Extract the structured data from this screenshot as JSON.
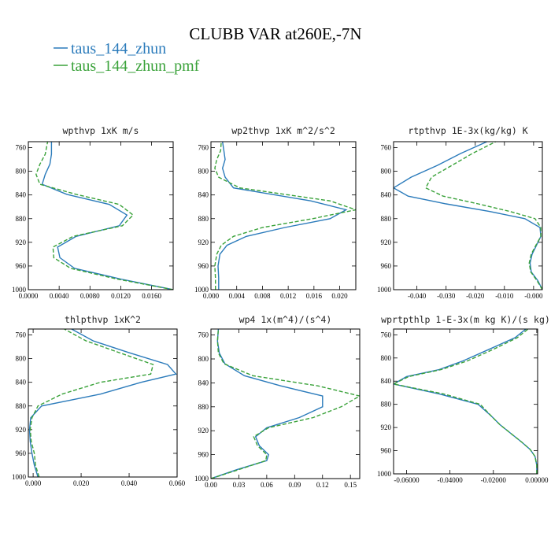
{
  "figure": {
    "title": "CLUBB VAR at260E,-7N",
    "legend": [
      {
        "label": "taus_144_zhun",
        "color": "#2b7bbb",
        "dash": "solid"
      },
      {
        "label": "taus_144_zhun_pmf",
        "color": "#3aa23a",
        "dash": "dashed"
      }
    ]
  },
  "chart_data": [
    {
      "type": "line",
      "title": "wpthvp  1xK m/s",
      "xlim": [
        0,
        0.0188
      ],
      "ylim": [
        1000,
        750
      ],
      "xticks": [
        0,
        0.004,
        0.008,
        0.012,
        0.016
      ],
      "xticklabels": [
        "0.0000",
        "0.0040",
        "0.0080",
        "0.0120",
        "0.0160"
      ],
      "yticks": [
        760,
        800,
        840,
        880,
        920,
        960,
        1000
      ],
      "y": [
        1000,
        982,
        964,
        946,
        928,
        910,
        892,
        874,
        856,
        839,
        822,
        805,
        788,
        771,
        750
      ],
      "series": [
        {
          "name": "taus_144_zhun",
          "x": [
            0.0188,
            0.012,
            0.006,
            0.0041,
            0.0038,
            0.0062,
            0.0118,
            0.0128,
            0.0105,
            0.005,
            0.0018,
            0.0022,
            0.0028,
            0.003,
            0.003
          ]
        },
        {
          "name": "taus_144_zhun_pmf",
          "x": [
            0.0188,
            0.0115,
            0.0055,
            0.0033,
            0.0032,
            0.0058,
            0.0122,
            0.0136,
            0.0118,
            0.0062,
            0.0015,
            0.001,
            0.0015,
            0.0022,
            0.0025
          ]
        }
      ]
    },
    {
      "type": "line",
      "title": "wp2thvp  1xK m^2/s^2",
      "xlim": [
        0,
        0.0225
      ],
      "ylim": [
        1000,
        750
      ],
      "xticks": [
        0,
        0.004,
        0.008,
        0.012,
        0.016,
        0.02
      ],
      "xticklabels": [
        "0.000",
        "0.004",
        "0.008",
        "0.012",
        "0.016",
        "0.020"
      ],
      "yticks": [
        760,
        800,
        840,
        880,
        920,
        960,
        1000
      ],
      "y": [
        1000,
        980,
        960,
        940,
        925,
        910,
        895,
        880,
        865,
        850,
        828,
        810,
        795,
        780,
        765,
        750
      ],
      "series": [
        {
          "name": "taus_144_zhun",
          "x": [
            0.0012,
            0.0012,
            0.0011,
            0.0014,
            0.0025,
            0.0055,
            0.0115,
            0.0185,
            0.021,
            0.0155,
            0.0035,
            0.0022,
            0.0018,
            0.0022,
            0.002,
            0.0018
          ]
        },
        {
          "name": "taus_144_zhun_pmf",
          "x": [
            0.0007,
            0.0007,
            0.0006,
            0.0009,
            0.0016,
            0.0035,
            0.008,
            0.0158,
            0.0225,
            0.0185,
            0.0045,
            0.0012,
            0.0006,
            0.0009,
            0.0015,
            0.0016
          ]
        }
      ]
    },
    {
      "type": "line",
      "title": "rtpthvp  1E-3x(kg/kg) K",
      "xlim": [
        -0.048,
        0.003
      ],
      "ylim": [
        1000,
        750
      ],
      "xticks": [
        -0.04,
        -0.03,
        -0.02,
        -0.01,
        0
      ],
      "xticklabels": [
        "-0.040",
        "-0.030",
        "-0.020",
        "-0.010",
        "-0.000"
      ],
      "yticks": [
        760,
        800,
        840,
        880,
        920,
        960,
        1000
      ],
      "y": [
        1000,
        985,
        970,
        955,
        940,
        925,
        910,
        895,
        880,
        868,
        855,
        842,
        828,
        810,
        790,
        770,
        750
      ],
      "series": [
        {
          "name": "taus_144_zhun",
          "x": [
            0.003,
            0.0015,
            -0.0008,
            -0.0012,
            -0.0005,
            0.001,
            0.0025,
            0.0022,
            -0.003,
            -0.015,
            -0.03,
            -0.043,
            -0.048,
            -0.042,
            -0.033,
            -0.025,
            -0.016
          ]
        },
        {
          "name": "taus_144_zhun_pmf",
          "x": [
            0.003,
            0.0012,
            -0.001,
            -0.0015,
            -0.0008,
            0.0008,
            0.0025,
            0.0025,
            0.0005,
            -0.008,
            -0.019,
            -0.031,
            -0.037,
            -0.035,
            -0.028,
            -0.021,
            -0.013
          ]
        }
      ]
    },
    {
      "type": "line",
      "title": "thlpthvp  1xK^2",
      "xlim": [
        -0.002,
        0.06
      ],
      "ylim": [
        1000,
        750
      ],
      "xticks": [
        0,
        0.02,
        0.04,
        0.06
      ],
      "xticklabels": [
        "0.000",
        "0.020",
        "0.040",
        "0.060"
      ],
      "yticks": [
        760,
        800,
        840,
        880,
        920,
        960,
        1000
      ],
      "y": [
        1000,
        980,
        960,
        940,
        920,
        900,
        880,
        860,
        840,
        826,
        810,
        790,
        770,
        750
      ],
      "series": [
        {
          "name": "taus_144_zhun",
          "x": [
            0.002,
            0.0005,
            -0.0005,
            -0.0012,
            -0.0015,
            -0.001,
            0.0035,
            0.028,
            0.045,
            0.0595,
            0.056,
            0.04,
            0.025,
            0.016
          ]
        },
        {
          "name": "taus_144_zhun_pmf",
          "x": [
            0.0025,
            0.001,
            0.0005,
            -0.0008,
            -0.0012,
            -0.0005,
            0.002,
            0.012,
            0.028,
            0.049,
            0.05,
            0.036,
            0.022,
            0.013
          ]
        }
      ]
    },
    {
      "type": "line",
      "title": "wp4  1x(m^4)/(s^4)",
      "xlim": [
        0,
        0.16
      ],
      "ylim": [
        1000,
        750
      ],
      "xticks": [
        0,
        0.03,
        0.06,
        0.09,
        0.12,
        0.15
      ],
      "xticklabels": [
        "0.00",
        "0.03",
        "0.06",
        "0.09",
        "0.12",
        "0.15"
      ],
      "yticks": [
        760,
        800,
        840,
        880,
        920,
        960,
        1000
      ],
      "y": [
        1000,
        985,
        970,
        960,
        945,
        930,
        915,
        898,
        880,
        862,
        845,
        828,
        808,
        790,
        770,
        750
      ],
      "series": [
        {
          "name": "taus_144_zhun",
          "x": [
            0,
            0.028,
            0.06,
            0.062,
            0.052,
            0.048,
            0.06,
            0.095,
            0.12,
            0.12,
            0.075,
            0.036,
            0.015,
            0.009,
            0.007,
            0.008
          ]
        },
        {
          "name": "taus_144_zhun_pmf",
          "x": [
            0,
            0.03,
            0.059,
            0.06,
            0.05,
            0.046,
            0.062,
            0.11,
            0.14,
            0.16,
            0.115,
            0.045,
            0.014,
            0.008,
            0.007,
            0.008
          ]
        }
      ]
    },
    {
      "type": "line",
      "title": "wprtpthlp  1-E-3x(m kg K)/(s kg)",
      "xlim": [
        -0.066,
        0.0004
      ],
      "ylim": [
        1000,
        750
      ],
      "xticks": [
        -0.06,
        -0.04,
        -0.02,
        0
      ],
      "xticklabels": [
        "-0.06000",
        "-0.04000",
        "-0.02000",
        "0.00000"
      ],
      "yticks": [
        760,
        800,
        840,
        880,
        920,
        960,
        1000
      ],
      "y": [
        1000,
        985,
        970,
        958,
        945,
        930,
        915,
        900,
        880,
        862,
        845,
        832,
        820,
        805,
        785,
        765,
        750
      ],
      "series": [
        {
          "name": "taus_144_zhun",
          "x": [
            0,
            0,
            -0.0008,
            -0.003,
            -0.007,
            -0.012,
            -0.017,
            -0.021,
            -0.027,
            -0.045,
            -0.066,
            -0.06,
            -0.045,
            -0.034,
            -0.022,
            -0.01,
            -0.005
          ]
        },
        {
          "name": "taus_144_zhun_pmf",
          "x": [
            0,
            0,
            -0.0008,
            -0.003,
            -0.007,
            -0.012,
            -0.017,
            -0.021,
            -0.026,
            -0.043,
            -0.066,
            -0.059,
            -0.044,
            -0.032,
            -0.02,
            -0.009,
            -0.004
          ]
        }
      ]
    }
  ]
}
